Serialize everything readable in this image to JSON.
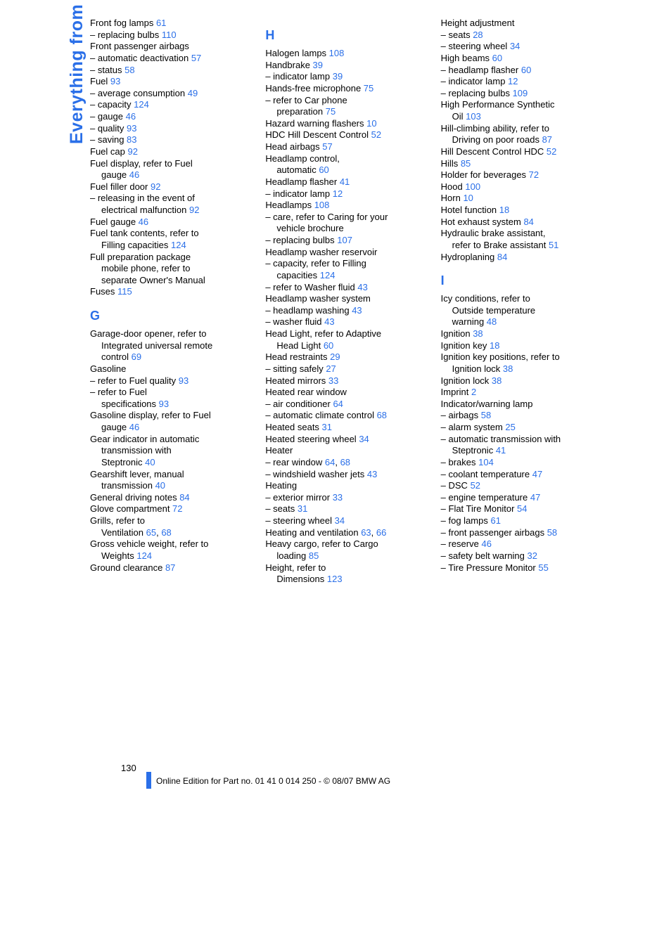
{
  "tab_label": "Everything from A to Z",
  "link_color": "#2a6fe8",
  "text_color": "#000000",
  "page_number": "130",
  "footer": "Online Edition for Part no. 01 41 0 014 250 - © 08/07 BMW AG",
  "columns": [
    {
      "lines": [
        {
          "t": "Front fog lamps ",
          "r": "61"
        },
        {
          "t": "– replacing bulbs ",
          "r": "110"
        },
        {
          "t": "Front passenger airbags"
        },
        {
          "t": "– automatic deactivation ",
          "r": "57"
        },
        {
          "t": "– status ",
          "r": "58"
        },
        {
          "t": "Fuel ",
          "r": "93"
        },
        {
          "t": "– average consumption ",
          "r": "49"
        },
        {
          "t": "– capacity ",
          "r": "124"
        },
        {
          "t": "– gauge ",
          "r": "46"
        },
        {
          "t": "– quality ",
          "r": "93"
        },
        {
          "t": "– saving ",
          "r": "83"
        },
        {
          "t": "Fuel cap ",
          "r": "92"
        },
        {
          "t": "Fuel display, refer to Fuel"
        },
        {
          "t": "gauge ",
          "r": "46",
          "indent": true
        },
        {
          "t": "Fuel filler door ",
          "r": "92"
        },
        {
          "t": "– releasing in the event of"
        },
        {
          "t": "electrical malfunction ",
          "r": "92",
          "indent": true
        },
        {
          "t": "Fuel gauge ",
          "r": "46"
        },
        {
          "t": "Fuel tank contents, refer to"
        },
        {
          "t": "Filling capacities ",
          "r": "124",
          "indent": true
        },
        {
          "t": "Full preparation package"
        },
        {
          "t": "mobile phone, refer to",
          "indent": true
        },
        {
          "t": "separate Owner's Manual",
          "indent": true
        },
        {
          "t": "Fuses ",
          "r": "115"
        },
        {
          "head": "G"
        },
        {
          "t": "Garage-door opener, refer to"
        },
        {
          "t": "Integrated universal remote",
          "indent": true
        },
        {
          "t": "control ",
          "r": "69",
          "indent": true
        },
        {
          "t": "Gasoline"
        },
        {
          "t": "– refer to Fuel quality ",
          "r": "93"
        },
        {
          "t": "– refer to Fuel"
        },
        {
          "t": "specifications ",
          "r": "93",
          "indent": true
        },
        {
          "t": "Gasoline display, refer to Fuel"
        },
        {
          "t": "gauge ",
          "r": "46",
          "indent": true
        },
        {
          "t": "Gear indicator in automatic"
        },
        {
          "t": "transmission with",
          "indent": true
        },
        {
          "t": "Steptronic ",
          "r": "40",
          "indent": true
        },
        {
          "t": "Gearshift lever, manual"
        },
        {
          "t": "transmission ",
          "r": "40",
          "indent": true
        },
        {
          "t": "General driving notes ",
          "r": "84"
        },
        {
          "t": "Glove compartment ",
          "r": "72"
        },
        {
          "t": "Grills, refer to"
        },
        {
          "t": "Ventilation ",
          "r": "65",
          "r2": "68",
          "sep": ", ",
          "indent": true
        },
        {
          "t": "Gross vehicle weight, refer to"
        },
        {
          "t": "Weights ",
          "r": "124",
          "indent": true
        },
        {
          "t": "Ground clearance ",
          "r": "87"
        }
      ]
    },
    {
      "lines": [
        {
          "head": "H"
        },
        {
          "t": "Halogen lamps ",
          "r": "108"
        },
        {
          "t": "Handbrake ",
          "r": "39"
        },
        {
          "t": "– indicator lamp ",
          "r": "39"
        },
        {
          "t": "Hands-free microphone ",
          "r": "75"
        },
        {
          "t": "– refer to Car phone"
        },
        {
          "t": "preparation ",
          "r": "75",
          "indent": true
        },
        {
          "t": "Hazard warning flashers ",
          "r": "10"
        },
        {
          "t": "HDC Hill Descent Control ",
          "r": "52"
        },
        {
          "t": "Head airbags ",
          "r": "57"
        },
        {
          "t": "Headlamp control,"
        },
        {
          "t": "automatic ",
          "r": "60",
          "indent": true
        },
        {
          "t": "Headlamp flasher ",
          "r": "41"
        },
        {
          "t": "– indicator lamp ",
          "r": "12"
        },
        {
          "t": "Headlamps ",
          "r": "108"
        },
        {
          "t": "– care, refer to Caring for your"
        },
        {
          "t": "vehicle brochure",
          "indent": true
        },
        {
          "t": "– replacing bulbs ",
          "r": "107"
        },
        {
          "t": "Headlamp washer reservoir"
        },
        {
          "t": "– capacity, refer to Filling"
        },
        {
          "t": "capacities ",
          "r": "124",
          "indent": true
        },
        {
          "t": "– refer to Washer fluid ",
          "r": "43"
        },
        {
          "t": "Headlamp washer system"
        },
        {
          "t": "– headlamp washing ",
          "r": "43"
        },
        {
          "t": "– washer fluid ",
          "r": "43"
        },
        {
          "t": "Head Light, refer to Adaptive"
        },
        {
          "t": "Head Light ",
          "r": "60",
          "indent": true
        },
        {
          "t": "Head restraints ",
          "r": "29"
        },
        {
          "t": "– sitting safely ",
          "r": "27"
        },
        {
          "t": "Heated mirrors ",
          "r": "33"
        },
        {
          "t": "Heated rear window"
        },
        {
          "t": "– air conditioner ",
          "r": "64"
        },
        {
          "t": "– automatic climate control ",
          "r": "68"
        },
        {
          "t": "Heated seats ",
          "r": "31"
        },
        {
          "t": "Heated steering wheel ",
          "r": "34"
        },
        {
          "t": "Heater"
        },
        {
          "t": "– rear window ",
          "r": "64",
          "r2": "68",
          "sep": ", "
        },
        {
          "t": "– windshield washer jets ",
          "r": "43"
        },
        {
          "t": "Heating"
        },
        {
          "t": "– exterior mirror ",
          "r": "33"
        },
        {
          "t": "– seats ",
          "r": "31"
        },
        {
          "t": "– steering wheel ",
          "r": "34"
        },
        {
          "t": "Heating and ventilation ",
          "r": "63",
          "r2": "66",
          "sep": ", "
        },
        {
          "t": "Heavy cargo, refer to Cargo"
        },
        {
          "t": "loading ",
          "r": "85",
          "indent": true
        },
        {
          "t": "Height, refer to"
        },
        {
          "t": "Dimensions ",
          "r": "123",
          "indent": true
        }
      ]
    },
    {
      "lines": [
        {
          "t": "Height adjustment"
        },
        {
          "t": "– seats ",
          "r": "28"
        },
        {
          "t": "– steering wheel ",
          "r": "34"
        },
        {
          "t": "High beams ",
          "r": "60"
        },
        {
          "t": "– headlamp flasher ",
          "r": "60"
        },
        {
          "t": "– indicator lamp ",
          "r": "12"
        },
        {
          "t": "– replacing bulbs ",
          "r": "109"
        },
        {
          "t": "High Performance Synthetic"
        },
        {
          "t": "Oil ",
          "r": "103",
          "indent": true
        },
        {
          "t": "Hill-climbing ability, refer to"
        },
        {
          "t": "Driving on poor roads ",
          "r": "87",
          "indent": true
        },
        {
          "t": "Hill Descent Control HDC ",
          "r": "52"
        },
        {
          "t": "Hills ",
          "r": "85"
        },
        {
          "t": "Holder for beverages ",
          "r": "72"
        },
        {
          "t": "Hood ",
          "r": "100"
        },
        {
          "t": "Horn ",
          "r": "10"
        },
        {
          "t": "Hotel function ",
          "r": "18"
        },
        {
          "t": "Hot exhaust system ",
          "r": "84"
        },
        {
          "t": "Hydraulic brake assistant,"
        },
        {
          "t": "refer to Brake assistant ",
          "r": "51",
          "indent": true
        },
        {
          "t": "Hydroplaning ",
          "r": "84"
        },
        {
          "head": "I"
        },
        {
          "t": "Icy conditions, refer to"
        },
        {
          "t": "Outside temperature",
          "indent": true
        },
        {
          "t": "warning ",
          "r": "48",
          "indent": true
        },
        {
          "t": "Ignition ",
          "r": "38"
        },
        {
          "t": "Ignition key ",
          "r": "18"
        },
        {
          "t": "Ignition key positions, refer to"
        },
        {
          "t": "Ignition lock ",
          "r": "38",
          "indent": true
        },
        {
          "t": "Ignition lock ",
          "r": "38"
        },
        {
          "t": "Imprint ",
          "r": "2"
        },
        {
          "t": "Indicator/warning lamp"
        },
        {
          "t": "– airbags ",
          "r": "58"
        },
        {
          "t": "– alarm system ",
          "r": "25"
        },
        {
          "t": "– automatic transmission with"
        },
        {
          "t": "Steptronic ",
          "r": "41",
          "indent": true
        },
        {
          "t": "– brakes ",
          "r": "104"
        },
        {
          "t": "– coolant temperature ",
          "r": "47"
        },
        {
          "t": "– DSC ",
          "r": "52"
        },
        {
          "t": "– engine temperature ",
          "r": "47"
        },
        {
          "t": "– Flat Tire Monitor ",
          "r": "54"
        },
        {
          "t": "– fog lamps ",
          "r": "61"
        },
        {
          "t": "– front passenger airbags ",
          "r": "58"
        },
        {
          "t": "– reserve ",
          "r": "46"
        },
        {
          "t": "– safety belt warning ",
          "r": "32"
        },
        {
          "t": "– Tire Pressure Monitor ",
          "r": "55"
        }
      ]
    }
  ]
}
